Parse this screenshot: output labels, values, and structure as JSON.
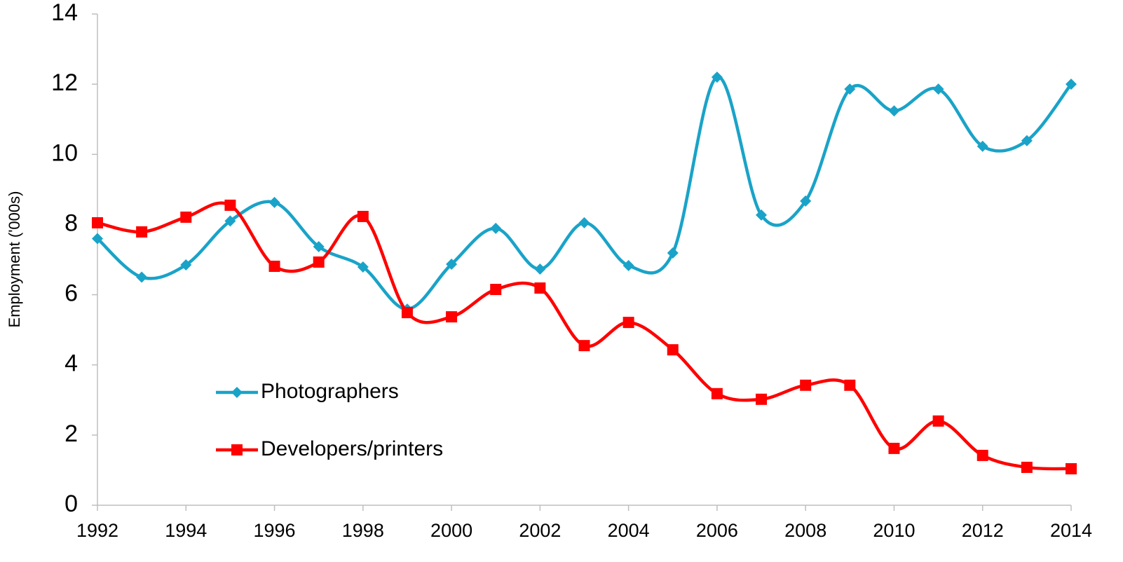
{
  "chart_data": {
    "type": "line",
    "y_label": "Employment ('000s)",
    "x": [
      1992,
      1993,
      1994,
      1995,
      1996,
      1997,
      1998,
      1999,
      2000,
      2001,
      2002,
      2003,
      2004,
      2005,
      2006,
      2007,
      2008,
      2009,
      2010,
      2011,
      2012,
      2013,
      2014
    ],
    "series": [
      {
        "name": "Photographers",
        "color": "#1aa3c8",
        "marker": "diamond",
        "values": [
          7.6,
          6.5,
          6.85,
          8.1,
          8.63,
          7.37,
          6.79,
          5.59,
          6.87,
          7.89,
          6.73,
          8.05,
          6.83,
          7.19,
          12.2,
          8.27,
          8.67,
          11.86,
          11.24,
          11.86,
          10.23,
          10.39,
          12.0
        ]
      },
      {
        "name": "Developers/printers",
        "color": "#ff0000",
        "marker": "square",
        "values": [
          8.05,
          7.79,
          8.21,
          8.55,
          6.81,
          6.93,
          8.23,
          5.49,
          5.37,
          6.15,
          6.19,
          4.55,
          5.21,
          4.43,
          3.18,
          3.02,
          3.42,
          3.42,
          1.62,
          2.4,
          1.42,
          1.08,
          1.04
        ]
      }
    ],
    "xlim": [
      1992,
      2014
    ],
    "xticks": [
      1992,
      1994,
      1996,
      1998,
      2000,
      2002,
      2004,
      2006,
      2008,
      2010,
      2012,
      2014
    ],
    "ylim": [
      0,
      14
    ],
    "yticks": [
      0,
      2,
      4,
      6,
      8,
      10,
      12,
      14
    ],
    "grid": false,
    "smooth": true,
    "legend": "center-left"
  }
}
